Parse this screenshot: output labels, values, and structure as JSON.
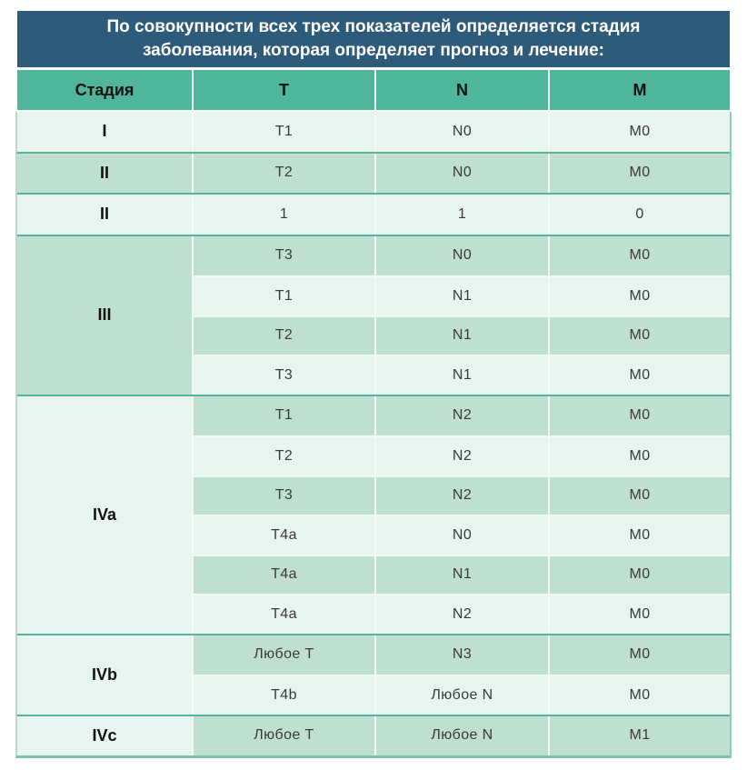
{
  "page": {
    "background": "#ffffff"
  },
  "colors": {
    "page_bg": "#ffffff",
    "title_bg": "#2d5b79",
    "title_text": "#ffffff",
    "header_bg": "#4fb69c",
    "header_text": "#111111",
    "row_light": "#e8f4ef",
    "row_medium": "#bfdfd1",
    "stage_text": "#121212",
    "cell_text": "#3a3a3a",
    "divider": "#58b29c",
    "cell_border": "#f2faf6",
    "outer_border": "#79c3ab"
  },
  "table": {
    "title": "По совокупности всех трех показателей определяется стадия заболевания, которая определяет прогноз и лечение:",
    "columns": [
      "Стадия",
      "T",
      "N",
      "M"
    ],
    "groups": [
      {
        "stage": "I",
        "stage_shade": "light",
        "rows": [
          {
            "t": "T1",
            "n": "N0",
            "m": "M0",
            "shade": "light"
          }
        ]
      },
      {
        "stage": "II",
        "stage_shade": "medium",
        "rows": [
          {
            "t": "T2",
            "n": "N0",
            "m": "M0",
            "shade": "medium"
          }
        ]
      },
      {
        "stage": "II",
        "stage_shade": "light",
        "rows": [
          {
            "t": "1",
            "n": "1",
            "m": "0",
            "shade": "light"
          }
        ]
      },
      {
        "stage": "III",
        "stage_shade": "medium",
        "rows": [
          {
            "t": "T3",
            "n": "N0",
            "m": "M0",
            "shade": "medium"
          },
          {
            "t": "T1",
            "n": "N1",
            "m": "M0",
            "shade": "light"
          },
          {
            "t": "T2",
            "n": "N1",
            "m": "M0",
            "shade": "medium"
          },
          {
            "t": "T3",
            "n": "N1",
            "m": "M0",
            "shade": "light"
          }
        ]
      },
      {
        "stage": "IVa",
        "stage_shade": "light",
        "rows": [
          {
            "t": "T1",
            "n": "N2",
            "m": "M0",
            "shade": "medium"
          },
          {
            "t": "T2",
            "n": "N2",
            "m": "M0",
            "shade": "light"
          },
          {
            "t": "T3",
            "n": "N2",
            "m": "M0",
            "shade": "medium"
          },
          {
            "t": "T4a",
            "n": "N0",
            "m": "M0",
            "shade": "light"
          },
          {
            "t": "T4a",
            "n": "N1",
            "m": "M0",
            "shade": "medium"
          },
          {
            "t": "T4a",
            "n": "N2",
            "m": "M0",
            "shade": "light"
          }
        ]
      },
      {
        "stage": "IVb",
        "stage_shade": "light",
        "rows": [
          {
            "t": "Любое T",
            "n": "N3",
            "m": "M0",
            "shade": "medium"
          },
          {
            "t": "T4b",
            "n": "Любое N",
            "m": "M0",
            "shade": "light"
          }
        ]
      },
      {
        "stage": "IVc",
        "stage_shade": "light",
        "rows": [
          {
            "t": "Любое T",
            "n": "Любое N",
            "m": "M1",
            "shade": "medium"
          }
        ]
      }
    ]
  }
}
